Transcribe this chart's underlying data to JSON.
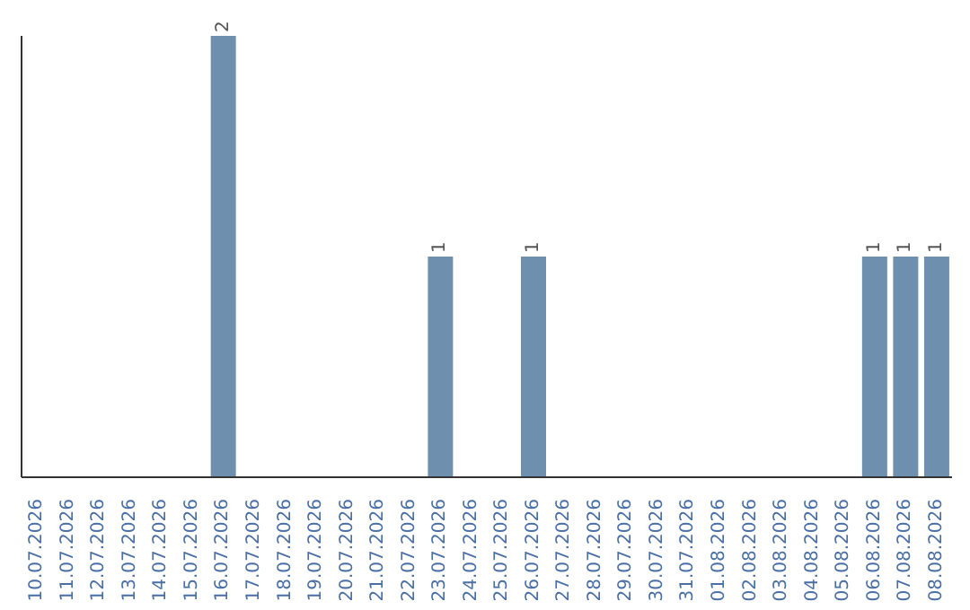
{
  "chart_data": {
    "type": "bar",
    "categories": [
      "10.07.2026",
      "11.07.2026",
      "12.07.2026",
      "13.07.2026",
      "14.07.2026",
      "15.07.2026",
      "16.07.2026",
      "17.07.2026",
      "18.07.2026",
      "19.07.2026",
      "20.07.2026",
      "21.07.2026",
      "22.07.2026",
      "23.07.2026",
      "24.07.2026",
      "25.07.2026",
      "26.07.2026",
      "27.07.2026",
      "28.07.2026",
      "29.07.2026",
      "30.07.2026",
      "31.07.2026",
      "01.08.2026",
      "02.08.2026",
      "03.08.2026",
      "04.08.2026",
      "05.08.2026",
      "06.08.2026",
      "07.08.2026",
      "08.08.2026"
    ],
    "values": [
      null,
      null,
      null,
      null,
      null,
      null,
      2,
      null,
      null,
      null,
      null,
      null,
      null,
      1,
      null,
      null,
      1,
      null,
      null,
      null,
      null,
      null,
      null,
      null,
      null,
      null,
      null,
      1,
      1,
      1
    ],
    "color": "#6f8fae",
    "data_labels": true,
    "tick_labels": "x"
  }
}
